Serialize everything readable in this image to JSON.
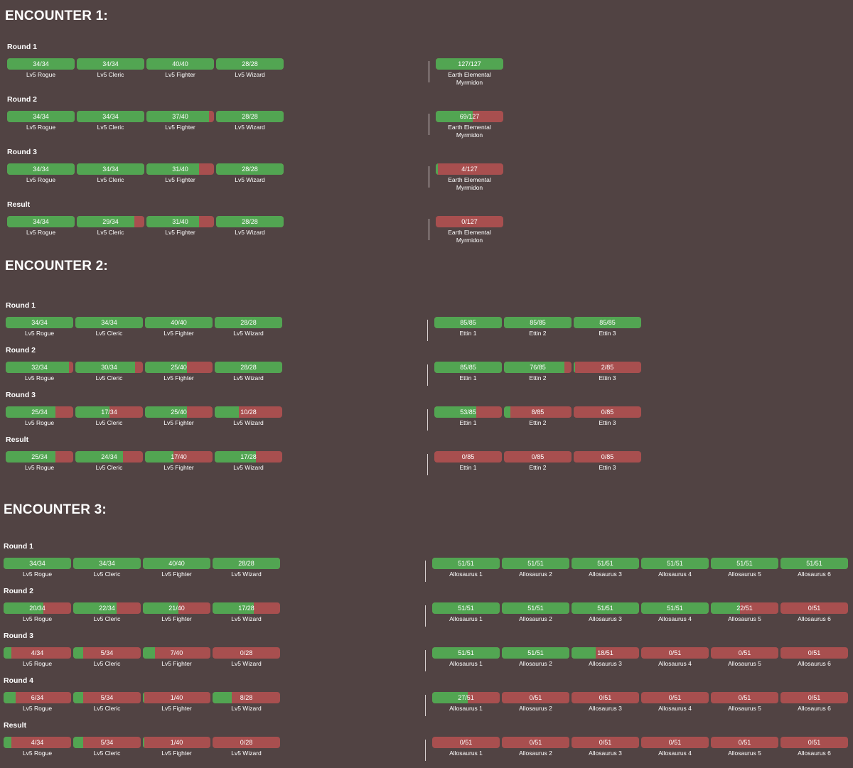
{
  "encounters": [
    {
      "title": "ENCOUNTER 1:",
      "rounds": [
        {
          "label": "Round 1",
          "party": [
            {
              "hp": 34,
              "max": 34,
              "name": "Lv5 Rogue"
            },
            {
              "hp": 34,
              "max": 34,
              "name": "Lv5 Cleric"
            },
            {
              "hp": 40,
              "max": 40,
              "name": "Lv5 Fighter"
            },
            {
              "hp": 28,
              "max": 28,
              "name": "Lv5 Wizard"
            }
          ],
          "enemies": [
            {
              "hp": 127,
              "max": 127,
              "name": "Earth Elemental Myrmidon"
            }
          ]
        },
        {
          "label": "Round 2",
          "party": [
            {
              "hp": 34,
              "max": 34,
              "name": "Lv5 Rogue"
            },
            {
              "hp": 34,
              "max": 34,
              "name": "Lv5 Cleric"
            },
            {
              "hp": 37,
              "max": 40,
              "name": "Lv5 Fighter"
            },
            {
              "hp": 28,
              "max": 28,
              "name": "Lv5 Wizard"
            }
          ],
          "enemies": [
            {
              "hp": 69,
              "max": 127,
              "name": "Earth Elemental Myrmidon"
            }
          ]
        },
        {
          "label": "Round 3",
          "party": [
            {
              "hp": 34,
              "max": 34,
              "name": "Lv5 Rogue"
            },
            {
              "hp": 34,
              "max": 34,
              "name": "Lv5 Cleric"
            },
            {
              "hp": 31,
              "max": 40,
              "name": "Lv5 Fighter"
            },
            {
              "hp": 28,
              "max": 28,
              "name": "Lv5 Wizard"
            }
          ],
          "enemies": [
            {
              "hp": 4,
              "max": 127,
              "name": "Earth Elemental Myrmidon"
            }
          ]
        },
        {
          "label": "Result",
          "party": [
            {
              "hp": 34,
              "max": 34,
              "name": "Lv5 Rogue"
            },
            {
              "hp": 29,
              "max": 34,
              "name": "Lv5 Cleric"
            },
            {
              "hp": 31,
              "max": 40,
              "name": "Lv5 Fighter"
            },
            {
              "hp": 28,
              "max": 28,
              "name": "Lv5 Wizard"
            }
          ],
          "enemies": [
            {
              "hp": 0,
              "max": 127,
              "name": "Earth Elemental Myrmidon"
            }
          ]
        }
      ]
    },
    {
      "title": "ENCOUNTER 2:",
      "rounds": [
        {
          "label": "Round 1",
          "party": [
            {
              "hp": 34,
              "max": 34,
              "name": "Lv5 Rogue"
            },
            {
              "hp": 34,
              "max": 34,
              "name": "Lv5 Cleric"
            },
            {
              "hp": 40,
              "max": 40,
              "name": "Lv5 Fighter"
            },
            {
              "hp": 28,
              "max": 28,
              "name": "Lv5 Wizard"
            }
          ],
          "enemies": [
            {
              "hp": 85,
              "max": 85,
              "name": "Ettin 1"
            },
            {
              "hp": 85,
              "max": 85,
              "name": "Ettin 2"
            },
            {
              "hp": 85,
              "max": 85,
              "name": "Ettin 3"
            }
          ]
        },
        {
          "label": "Round 2",
          "party": [
            {
              "hp": 32,
              "max": 34,
              "name": "Lv5 Rogue"
            },
            {
              "hp": 30,
              "max": 34,
              "name": "Lv5 Cleric"
            },
            {
              "hp": 25,
              "max": 40,
              "name": "Lv5 Fighter"
            },
            {
              "hp": 28,
              "max": 28,
              "name": "Lv5 Wizard"
            }
          ],
          "enemies": [
            {
              "hp": 85,
              "max": 85,
              "name": "Ettin 1"
            },
            {
              "hp": 76,
              "max": 85,
              "name": "Ettin 2"
            },
            {
              "hp": 2,
              "max": 85,
              "name": "Ettin 3"
            }
          ]
        },
        {
          "label": "Round 3",
          "party": [
            {
              "hp": 25,
              "max": 34,
              "name": "Lv5 Rogue"
            },
            {
              "hp": 17,
              "max": 34,
              "name": "Lv5 Cleric"
            },
            {
              "hp": 25,
              "max": 40,
              "name": "Lv5 Fighter"
            },
            {
              "hp": 10,
              "max": 28,
              "name": "Lv5 Wizard"
            }
          ],
          "enemies": [
            {
              "hp": 53,
              "max": 85,
              "name": "Ettin 1"
            },
            {
              "hp": 8,
              "max": 85,
              "name": "Ettin 2"
            },
            {
              "hp": 0,
              "max": 85,
              "name": "Ettin 3"
            }
          ]
        },
        {
          "label": "Result",
          "party": [
            {
              "hp": 25,
              "max": 34,
              "name": "Lv5 Rogue"
            },
            {
              "hp": 24,
              "max": 34,
              "name": "Lv5 Cleric"
            },
            {
              "hp": 17,
              "max": 40,
              "name": "Lv5 Fighter"
            },
            {
              "hp": 17,
              "max": 28,
              "name": "Lv5 Wizard"
            }
          ],
          "enemies": [
            {
              "hp": 0,
              "max": 85,
              "name": "Ettin 1"
            },
            {
              "hp": 0,
              "max": 85,
              "name": "Ettin 2"
            },
            {
              "hp": 0,
              "max": 85,
              "name": "Ettin 3"
            }
          ]
        }
      ]
    },
    {
      "title": "ENCOUNTER 3:",
      "rounds": [
        {
          "label": "Round 1",
          "party": [
            {
              "hp": 34,
              "max": 34,
              "name": "Lv5 Rogue"
            },
            {
              "hp": 34,
              "max": 34,
              "name": "Lv5 Cleric"
            },
            {
              "hp": 40,
              "max": 40,
              "name": "Lv5 Fighter"
            },
            {
              "hp": 28,
              "max": 28,
              "name": "Lv5 Wizard"
            }
          ],
          "enemies": [
            {
              "hp": 51,
              "max": 51,
              "name": "Allosaurus 1"
            },
            {
              "hp": 51,
              "max": 51,
              "name": "Allosaurus 2"
            },
            {
              "hp": 51,
              "max": 51,
              "name": "Allosaurus 3"
            },
            {
              "hp": 51,
              "max": 51,
              "name": "Allosaurus 4"
            },
            {
              "hp": 51,
              "max": 51,
              "name": "Allosaurus 5"
            },
            {
              "hp": 51,
              "max": 51,
              "name": "Allosaurus 6"
            }
          ]
        },
        {
          "label": "Round 2",
          "party": [
            {
              "hp": 20,
              "max": 34,
              "name": "Lv5 Rogue"
            },
            {
              "hp": 22,
              "max": 34,
              "name": "Lv5 Cleric"
            },
            {
              "hp": 21,
              "max": 40,
              "name": "Lv5 Fighter"
            },
            {
              "hp": 17,
              "max": 28,
              "name": "Lv5 Wizard"
            }
          ],
          "enemies": [
            {
              "hp": 51,
              "max": 51,
              "name": "Allosaurus 1"
            },
            {
              "hp": 51,
              "max": 51,
              "name": "Allosaurus 2"
            },
            {
              "hp": 51,
              "max": 51,
              "name": "Allosaurus 3"
            },
            {
              "hp": 51,
              "max": 51,
              "name": "Allosaurus 4"
            },
            {
              "hp": 22,
              "max": 51,
              "name": "Allosaurus 5"
            },
            {
              "hp": 0,
              "max": 51,
              "name": "Allosaurus 6"
            }
          ]
        },
        {
          "label": "Round 3",
          "party": [
            {
              "hp": 4,
              "max": 34,
              "name": "Lv5 Rogue"
            },
            {
              "hp": 5,
              "max": 34,
              "name": "Lv5 Cleric"
            },
            {
              "hp": 7,
              "max": 40,
              "name": "Lv5 Fighter"
            },
            {
              "hp": 0,
              "max": 28,
              "name": "Lv5 Wizard"
            }
          ],
          "enemies": [
            {
              "hp": 51,
              "max": 51,
              "name": "Allosaurus 1"
            },
            {
              "hp": 51,
              "max": 51,
              "name": "Allosaurus 2"
            },
            {
              "hp": 18,
              "max": 51,
              "name": "Allosaurus 3"
            },
            {
              "hp": 0,
              "max": 51,
              "name": "Allosaurus 4"
            },
            {
              "hp": 0,
              "max": 51,
              "name": "Allosaurus 5"
            },
            {
              "hp": 0,
              "max": 51,
              "name": "Allosaurus 6"
            }
          ]
        },
        {
          "label": "Round 4",
          "party": [
            {
              "hp": 6,
              "max": 34,
              "name": "Lv5 Rogue"
            },
            {
              "hp": 5,
              "max": 34,
              "name": "Lv5 Cleric"
            },
            {
              "hp": 1,
              "max": 40,
              "name": "Lv5 Fighter"
            },
            {
              "hp": 8,
              "max": 28,
              "name": "Lv5 Wizard"
            }
          ],
          "enemies": [
            {
              "hp": 27,
              "max": 51,
              "name": "Allosaurus 1"
            },
            {
              "hp": 0,
              "max": 51,
              "name": "Allosaurus 2"
            },
            {
              "hp": 0,
              "max": 51,
              "name": "Allosaurus 3"
            },
            {
              "hp": 0,
              "max": 51,
              "name": "Allosaurus 4"
            },
            {
              "hp": 0,
              "max": 51,
              "name": "Allosaurus 5"
            },
            {
              "hp": 0,
              "max": 51,
              "name": "Allosaurus 6"
            }
          ]
        },
        {
          "label": "Result",
          "party": [
            {
              "hp": 4,
              "max": 34,
              "name": "Lv5 Rogue"
            },
            {
              "hp": 5,
              "max": 34,
              "name": "Lv5 Cleric"
            },
            {
              "hp": 1,
              "max": 40,
              "name": "Lv5 Fighter"
            },
            {
              "hp": 0,
              "max": 28,
              "name": "Lv5 Wizard"
            }
          ],
          "enemies": [
            {
              "hp": 0,
              "max": 51,
              "name": "Allosaurus 1"
            },
            {
              "hp": 0,
              "max": 51,
              "name": "Allosaurus 2"
            },
            {
              "hp": 0,
              "max": 51,
              "name": "Allosaurus 3"
            },
            {
              "hp": 0,
              "max": 51,
              "name": "Allosaurus 4"
            },
            {
              "hp": 0,
              "max": 51,
              "name": "Allosaurus 5"
            },
            {
              "hp": 0,
              "max": 51,
              "name": "Allosaurus 6"
            }
          ]
        }
      ]
    }
  ],
  "colors": {
    "background": "#514343",
    "hp_fill": "#52a552",
    "hp_lost": "#a84f4f",
    "divider": "#d8d0d0"
  }
}
